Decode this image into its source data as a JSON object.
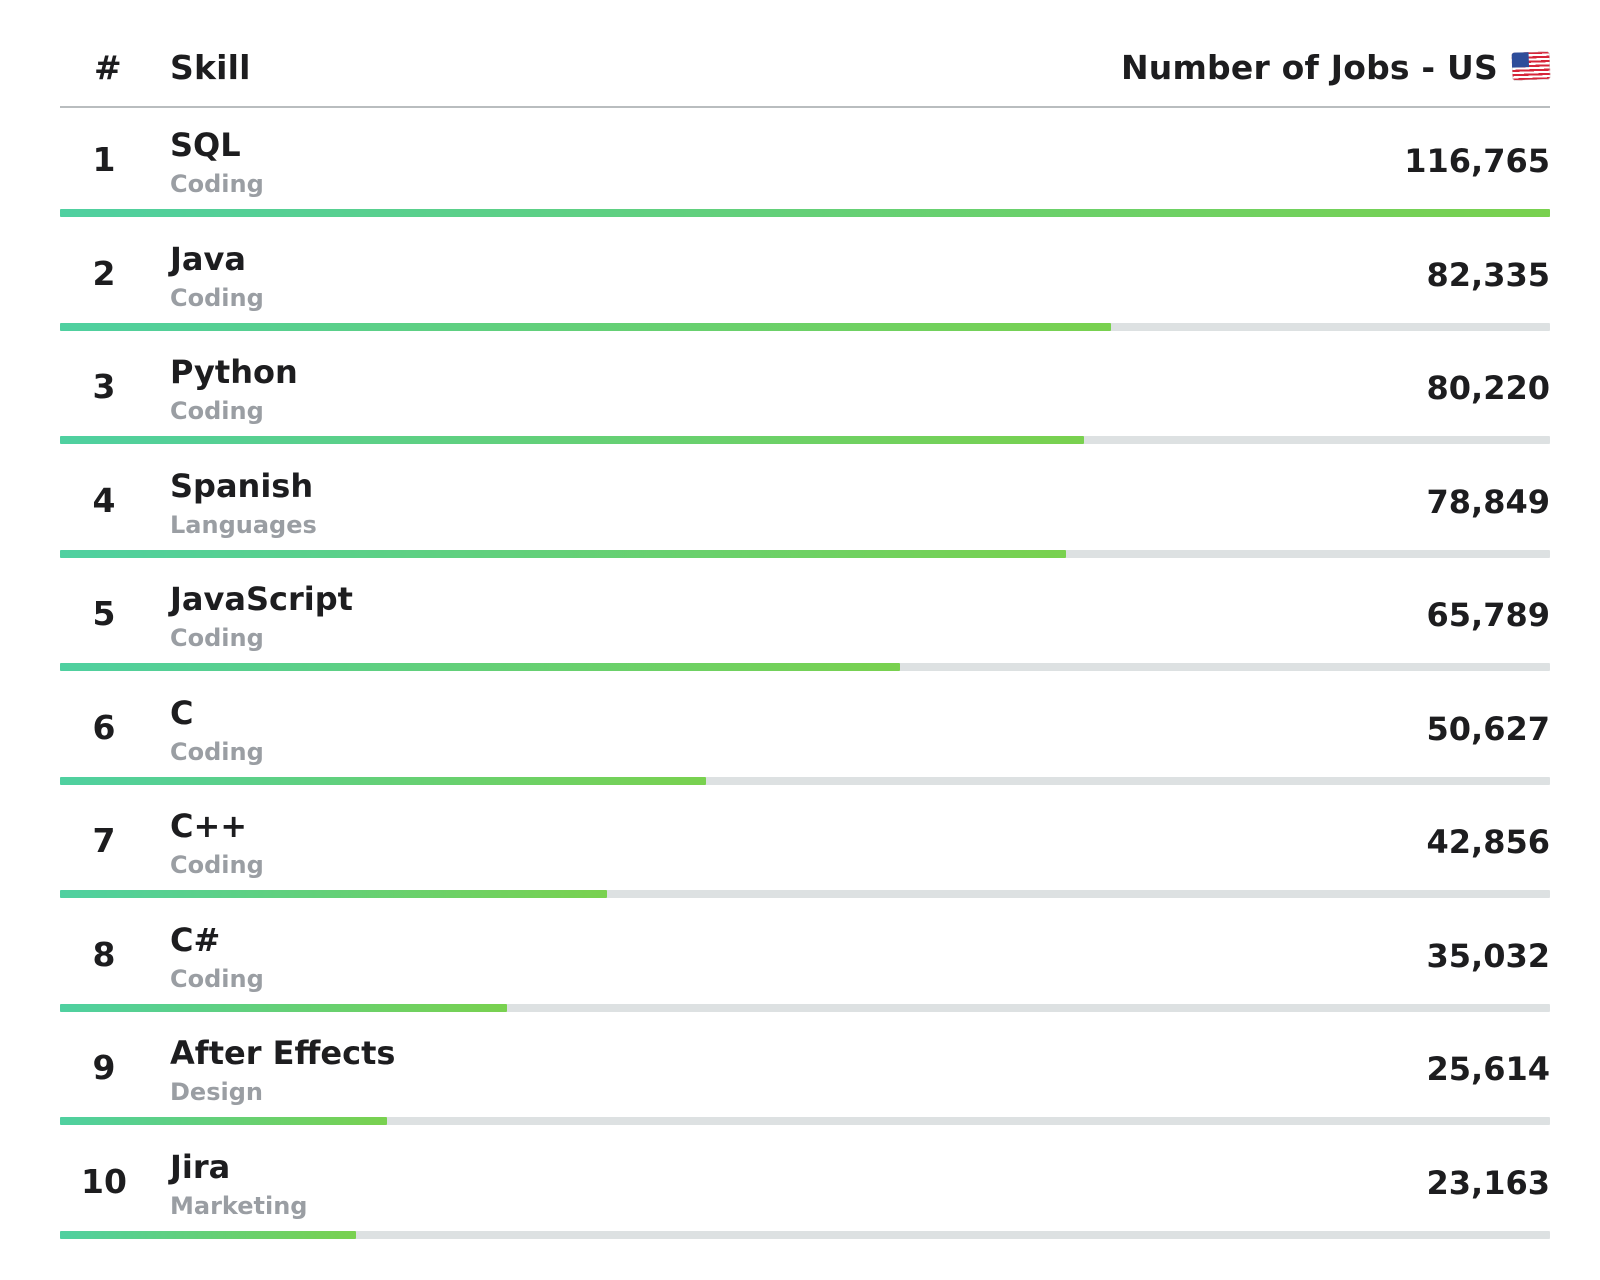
{
  "header": {
    "rank_label": "#",
    "skill_label": "Skill",
    "jobs_label": "Number of Jobs - US",
    "flag_icon": "us-flag-icon"
  },
  "colors": {
    "bar_start": "#4fd0a0",
    "bar_end": "#79d14f",
    "track": "#dde1e2",
    "category_text": "#9a9ea3"
  },
  "chart_data": {
    "type": "bar",
    "orientation": "horizontal",
    "categories": [
      "SQL",
      "Java",
      "Python",
      "Spanish",
      "JavaScript",
      "C",
      "C++",
      "C#",
      "After Effects",
      "Jira"
    ],
    "groups": [
      "Coding",
      "Coding",
      "Coding",
      "Languages",
      "Coding",
      "Coding",
      "Coding",
      "Coding",
      "Design",
      "Marketing"
    ],
    "ranks": [
      "1",
      "2",
      "3",
      "4",
      "5",
      "6",
      "7",
      "8",
      "9",
      "10"
    ],
    "values": [
      116765,
      82335,
      80220,
      78849,
      65789,
      50627,
      42856,
      35032,
      25614,
      23163
    ],
    "value_labels": [
      "116,765",
      "82,335",
      "80,220",
      "78,849",
      "65,789",
      "50,627",
      "42,856",
      "35,032",
      "25,614",
      "23,163"
    ],
    "xlim": [
      0,
      116765
    ]
  }
}
